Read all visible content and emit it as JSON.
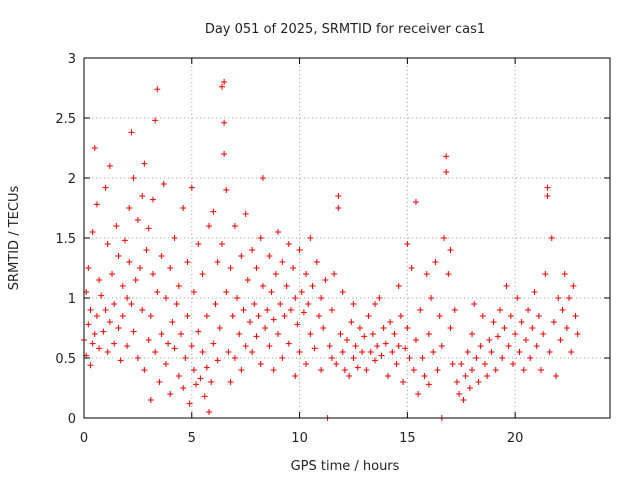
{
  "chart_data": {
    "type": "scatter",
    "title": "Day 051 of 2025, SRMTID for receiver cas1",
    "xlabel": "GPS time / hours",
    "ylabel": "SRMTID / TECUs",
    "xlim": [
      0,
      24.4
    ],
    "ylim": [
      0,
      3
    ],
    "xticks": [
      0,
      5,
      10,
      15,
      20
    ],
    "xtick_labels": [
      "0",
      "5",
      "10",
      "15",
      "20"
    ],
    "yticks": [
      0,
      0.5,
      1,
      1.5,
      2,
      2.5,
      3
    ],
    "ytick_labels": [
      "0",
      "0.5",
      "1",
      "1.5",
      "2",
      "2.5",
      "3"
    ],
    "grid": true,
    "marker": "+",
    "color": "#ee0000",
    "series": [
      {
        "name": "SRMTID",
        "points": [
          [
            0.0,
            0.65
          ],
          [
            0.1,
            0.52
          ],
          [
            0.1,
            1.05
          ],
          [
            0.2,
            0.78
          ],
          [
            0.2,
            1.25
          ],
          [
            0.3,
            0.44
          ],
          [
            0.3,
            0.9
          ],
          [
            0.4,
            0.62
          ],
          [
            0.4,
            1.55
          ],
          [
            0.5,
            2.25
          ],
          [
            0.5,
            0.7
          ],
          [
            0.6,
            1.78
          ],
          [
            0.6,
            0.85
          ],
          [
            0.7,
            0.58
          ],
          [
            0.7,
            1.15
          ],
          [
            0.8,
            1.02
          ],
          [
            0.9,
            0.72
          ],
          [
            1.0,
            1.92
          ],
          [
            1.0,
            0.9
          ],
          [
            1.1,
            1.45
          ],
          [
            1.1,
            0.55
          ],
          [
            1.2,
            0.8
          ],
          [
            1.2,
            2.1
          ],
          [
            1.3,
            1.2
          ],
          [
            1.4,
            0.95
          ],
          [
            1.4,
            0.62
          ],
          [
            1.5,
            1.6
          ],
          [
            1.6,
            0.75
          ],
          [
            1.6,
            1.35
          ],
          [
            1.7,
            0.48
          ],
          [
            1.8,
            1.1
          ],
          [
            1.8,
            0.85
          ],
          [
            1.9,
            1.48
          ],
          [
            2.0,
            1.0
          ],
          [
            2.0,
            0.6
          ],
          [
            2.1,
            1.75
          ],
          [
            2.1,
            1.3
          ],
          [
            2.2,
            0.95
          ],
          [
            2.2,
            2.38
          ],
          [
            2.3,
            0.72
          ],
          [
            2.3,
            2.0
          ],
          [
            2.4,
            1.15
          ],
          [
            2.5,
            0.5
          ],
          [
            2.5,
            1.65
          ],
          [
            2.6,
            1.25
          ],
          [
            2.7,
            0.9
          ],
          [
            2.7,
            1.85
          ],
          [
            2.8,
            0.4
          ],
          [
            2.8,
            2.12
          ],
          [
            2.9,
            1.4
          ],
          [
            3.0,
            0.65
          ],
          [
            3.0,
            1.58
          ],
          [
            3.1,
            0.15
          ],
          [
            3.1,
            0.85
          ],
          [
            3.2,
            1.2
          ],
          [
            3.2,
            1.82
          ],
          [
            3.3,
            2.48
          ],
          [
            3.3,
            0.55
          ],
          [
            3.4,
            2.74
          ],
          [
            3.4,
            1.05
          ],
          [
            3.5,
            0.3
          ],
          [
            3.6,
            0.7
          ],
          [
            3.6,
            1.35
          ],
          [
            3.7,
            1.95
          ],
          [
            3.8,
            0.45
          ],
          [
            3.8,
            1.0
          ],
          [
            3.9,
            0.62
          ],
          [
            4.0,
            1.25
          ],
          [
            4.0,
            0.2
          ],
          [
            4.1,
            0.8
          ],
          [
            4.2,
            1.5
          ],
          [
            4.2,
            0.58
          ],
          [
            4.3,
            0.95
          ],
          [
            4.4,
            0.35
          ],
          [
            4.4,
            1.1
          ],
          [
            4.5,
            0.7
          ],
          [
            4.6,
            1.75
          ],
          [
            4.6,
            0.25
          ],
          [
            4.7,
            0.5
          ],
          [
            4.8,
            1.3
          ],
          [
            4.8,
            0.85
          ],
          [
            4.9,
            0.12
          ],
          [
            5.0,
            1.92
          ],
          [
            5.0,
            0.6
          ],
          [
            5.1,
            0.4
          ],
          [
            5.1,
            1.05
          ],
          [
            5.2,
            0.28
          ],
          [
            5.3,
            0.72
          ],
          [
            5.3,
            1.45
          ],
          [
            5.4,
            0.33
          ],
          [
            5.5,
            0.55
          ],
          [
            5.5,
            1.2
          ],
          [
            5.6,
            0.18
          ],
          [
            5.7,
            0.42
          ],
          [
            5.7,
            0.85
          ],
          [
            5.8,
            0.05
          ],
          [
            5.8,
            1.6
          ],
          [
            5.9,
            0.3
          ],
          [
            6.0,
            0.62
          ],
          [
            6.0,
            1.72
          ],
          [
            6.1,
            0.95
          ],
          [
            6.2,
            0.48
          ],
          [
            6.2,
            1.3
          ],
          [
            6.3,
            0.75
          ],
          [
            6.4,
            1.45
          ],
          [
            6.4,
            2.76
          ],
          [
            6.5,
            2.8
          ],
          [
            6.5,
            2.46
          ],
          [
            6.5,
            2.2
          ],
          [
            6.6,
            1.9
          ],
          [
            6.6,
            1.05
          ],
          [
            6.7,
            0.55
          ],
          [
            6.8,
            1.25
          ],
          [
            6.8,
            0.3
          ],
          [
            6.9,
            0.85
          ],
          [
            7.0,
            1.6
          ],
          [
            7.0,
            0.5
          ],
          [
            7.1,
            1.0
          ],
          [
            7.2,
            0.7
          ],
          [
            7.3,
            1.35
          ],
          [
            7.3,
            0.4
          ],
          [
            7.4,
            0.9
          ],
          [
            7.5,
            1.7
          ],
          [
            7.5,
            0.6
          ],
          [
            7.6,
            1.15
          ],
          [
            7.7,
            0.8
          ],
          [
            7.8,
            1.4
          ],
          [
            7.8,
            0.55
          ],
          [
            7.9,
            0.95
          ],
          [
            8.0,
            1.25
          ],
          [
            8.0,
            0.68
          ],
          [
            8.1,
            0.85
          ],
          [
            8.2,
            1.5
          ],
          [
            8.2,
            0.45
          ],
          [
            8.3,
            2.0
          ],
          [
            8.3,
            1.1
          ],
          [
            8.4,
            0.75
          ],
          [
            8.5,
            0.9
          ],
          [
            8.6,
            1.35
          ],
          [
            8.6,
            0.6
          ],
          [
            8.7,
            1.05
          ],
          [
            8.8,
            0.4
          ],
          [
            8.8,
            0.82
          ],
          [
            8.9,
            1.2
          ],
          [
            9.0,
            1.55
          ],
          [
            9.0,
            0.7
          ],
          [
            9.1,
            0.95
          ],
          [
            9.2,
            0.5
          ],
          [
            9.2,
            1.3
          ],
          [
            9.3,
            0.85
          ],
          [
            9.4,
            1.1
          ],
          [
            9.5,
            0.62
          ],
          [
            9.5,
            1.45
          ],
          [
            9.6,
            0.9
          ],
          [
            9.7,
            1.25
          ],
          [
            9.8,
            0.35
          ],
          [
            9.8,
            1.0
          ],
          [
            9.9,
            0.78
          ],
          [
            10.0,
            1.4
          ],
          [
            10.0,
            0.55
          ],
          [
            10.1,
            1.05
          ],
          [
            10.2,
            0.88
          ],
          [
            10.3,
            1.2
          ],
          [
            10.3,
            0.45
          ],
          [
            10.4,
            0.95
          ],
          [
            10.5,
            1.5
          ],
          [
            10.5,
            0.7
          ],
          [
            10.6,
            1.1
          ],
          [
            10.7,
            0.58
          ],
          [
            10.8,
            1.3
          ],
          [
            10.9,
            0.85
          ],
          [
            11.0,
            1.0
          ],
          [
            11.0,
            0.4
          ],
          [
            11.1,
            0.75
          ],
          [
            11.2,
            1.15
          ],
          [
            11.3,
            0.0
          ],
          [
            11.4,
            0.6
          ],
          [
            11.5,
            0.9
          ],
          [
            11.5,
            0.5
          ],
          [
            11.6,
            1.2
          ],
          [
            11.7,
            0.45
          ],
          [
            11.8,
            1.85
          ],
          [
            11.8,
            1.75
          ],
          [
            11.9,
            0.7
          ],
          [
            12.0,
            0.55
          ],
          [
            12.0,
            1.05
          ],
          [
            12.1,
            0.4
          ],
          [
            12.2,
            0.65
          ],
          [
            12.3,
            0.35
          ],
          [
            12.4,
            0.8
          ],
          [
            12.5,
            0.5
          ],
          [
            12.5,
            0.95
          ],
          [
            12.6,
            0.6
          ],
          [
            12.7,
            0.42
          ],
          [
            12.8,
            0.75
          ],
          [
            12.9,
            0.55
          ],
          [
            13.0,
            0.68
          ],
          [
            13.1,
            0.4
          ],
          [
            13.2,
            0.85
          ],
          [
            13.3,
            0.55
          ],
          [
            13.4,
            0.7
          ],
          [
            13.5,
            0.95
          ],
          [
            13.5,
            0.48
          ],
          [
            13.6,
            0.6
          ],
          [
            13.7,
            1.0
          ],
          [
            13.8,
            0.52
          ],
          [
            13.9,
            0.75
          ],
          [
            14.0,
            0.62
          ],
          [
            14.1,
            0.35
          ],
          [
            14.2,
            0.8
          ],
          [
            14.3,
            0.55
          ],
          [
            14.4,
            0.7
          ],
          [
            14.5,
            0.45
          ],
          [
            14.6,
            1.1
          ],
          [
            14.6,
            0.6
          ],
          [
            14.7,
            0.85
          ],
          [
            14.8,
            0.3
          ],
          [
            14.9,
            0.58
          ],
          [
            15.0,
            1.45
          ],
          [
            15.0,
            0.75
          ],
          [
            15.1,
            0.5
          ],
          [
            15.2,
            1.25
          ],
          [
            15.3,
            0.4
          ],
          [
            15.4,
            1.8
          ],
          [
            15.4,
            0.65
          ],
          [
            15.5,
            0.2
          ],
          [
            15.6,
            0.9
          ],
          [
            15.7,
            0.5
          ],
          [
            15.8,
            0.35
          ],
          [
            15.9,
            1.2
          ],
          [
            16.0,
            0.7
          ],
          [
            16.0,
            0.28
          ],
          [
            16.1,
            1.0
          ],
          [
            16.2,
            0.55
          ],
          [
            16.3,
            1.3
          ],
          [
            16.4,
            0.4
          ],
          [
            16.5,
            0.85
          ],
          [
            16.6,
            0.0
          ],
          [
            16.6,
            0.6
          ],
          [
            16.7,
            1.5
          ],
          [
            16.8,
            2.18
          ],
          [
            16.8,
            2.05
          ],
          [
            16.9,
            1.2
          ],
          [
            17.0,
            0.75
          ],
          [
            17.0,
            1.4
          ],
          [
            17.1,
            0.45
          ],
          [
            17.2,
            0.9
          ],
          [
            17.3,
            0.3
          ],
          [
            17.4,
            0.2
          ],
          [
            17.5,
            0.45
          ],
          [
            17.6,
            0.15
          ],
          [
            17.7,
            0.35
          ],
          [
            17.8,
            0.55
          ],
          [
            17.9,
            0.25
          ],
          [
            18.0,
            0.7
          ],
          [
            18.0,
            0.4
          ],
          [
            18.1,
            0.95
          ],
          [
            18.2,
            0.5
          ],
          [
            18.3,
            0.3
          ],
          [
            18.4,
            0.6
          ],
          [
            18.5,
            0.85
          ],
          [
            18.6,
            0.45
          ],
          [
            18.7,
            0.35
          ],
          [
            18.8,
            0.65
          ],
          [
            18.9,
            0.55
          ],
          [
            19.0,
            0.8
          ],
          [
            19.1,
            0.4
          ],
          [
            19.2,
            0.68
          ],
          [
            19.3,
            0.9
          ],
          [
            19.4,
            0.5
          ],
          [
            19.5,
            0.75
          ],
          [
            19.6,
            1.1
          ],
          [
            19.7,
            0.6
          ],
          [
            19.8,
            0.85
          ],
          [
            19.9,
            0.45
          ],
          [
            20.0,
            0.7
          ],
          [
            20.1,
            1.0
          ],
          [
            20.2,
            0.55
          ],
          [
            20.3,
            0.8
          ],
          [
            20.4,
            0.4
          ],
          [
            20.5,
            0.65
          ],
          [
            20.6,
            0.9
          ],
          [
            20.7,
            0.5
          ],
          [
            20.8,
            0.75
          ],
          [
            20.9,
            1.05
          ],
          [
            21.0,
            0.6
          ],
          [
            21.1,
            0.85
          ],
          [
            21.2,
            0.4
          ],
          [
            21.3,
            0.7
          ],
          [
            21.4,
            1.2
          ],
          [
            21.5,
            1.92
          ],
          [
            21.5,
            1.85
          ],
          [
            21.6,
            0.55
          ],
          [
            21.7,
            1.5
          ],
          [
            21.8,
            0.8
          ],
          [
            21.9,
            0.35
          ],
          [
            22.0,
            1.0
          ],
          [
            22.1,
            0.65
          ],
          [
            22.2,
            0.9
          ],
          [
            22.3,
            1.2
          ],
          [
            22.4,
            0.75
          ],
          [
            22.5,
            1.0
          ],
          [
            22.6,
            0.55
          ],
          [
            22.7,
            1.1
          ],
          [
            22.8,
            0.85
          ],
          [
            22.9,
            0.7
          ]
        ]
      }
    ]
  }
}
